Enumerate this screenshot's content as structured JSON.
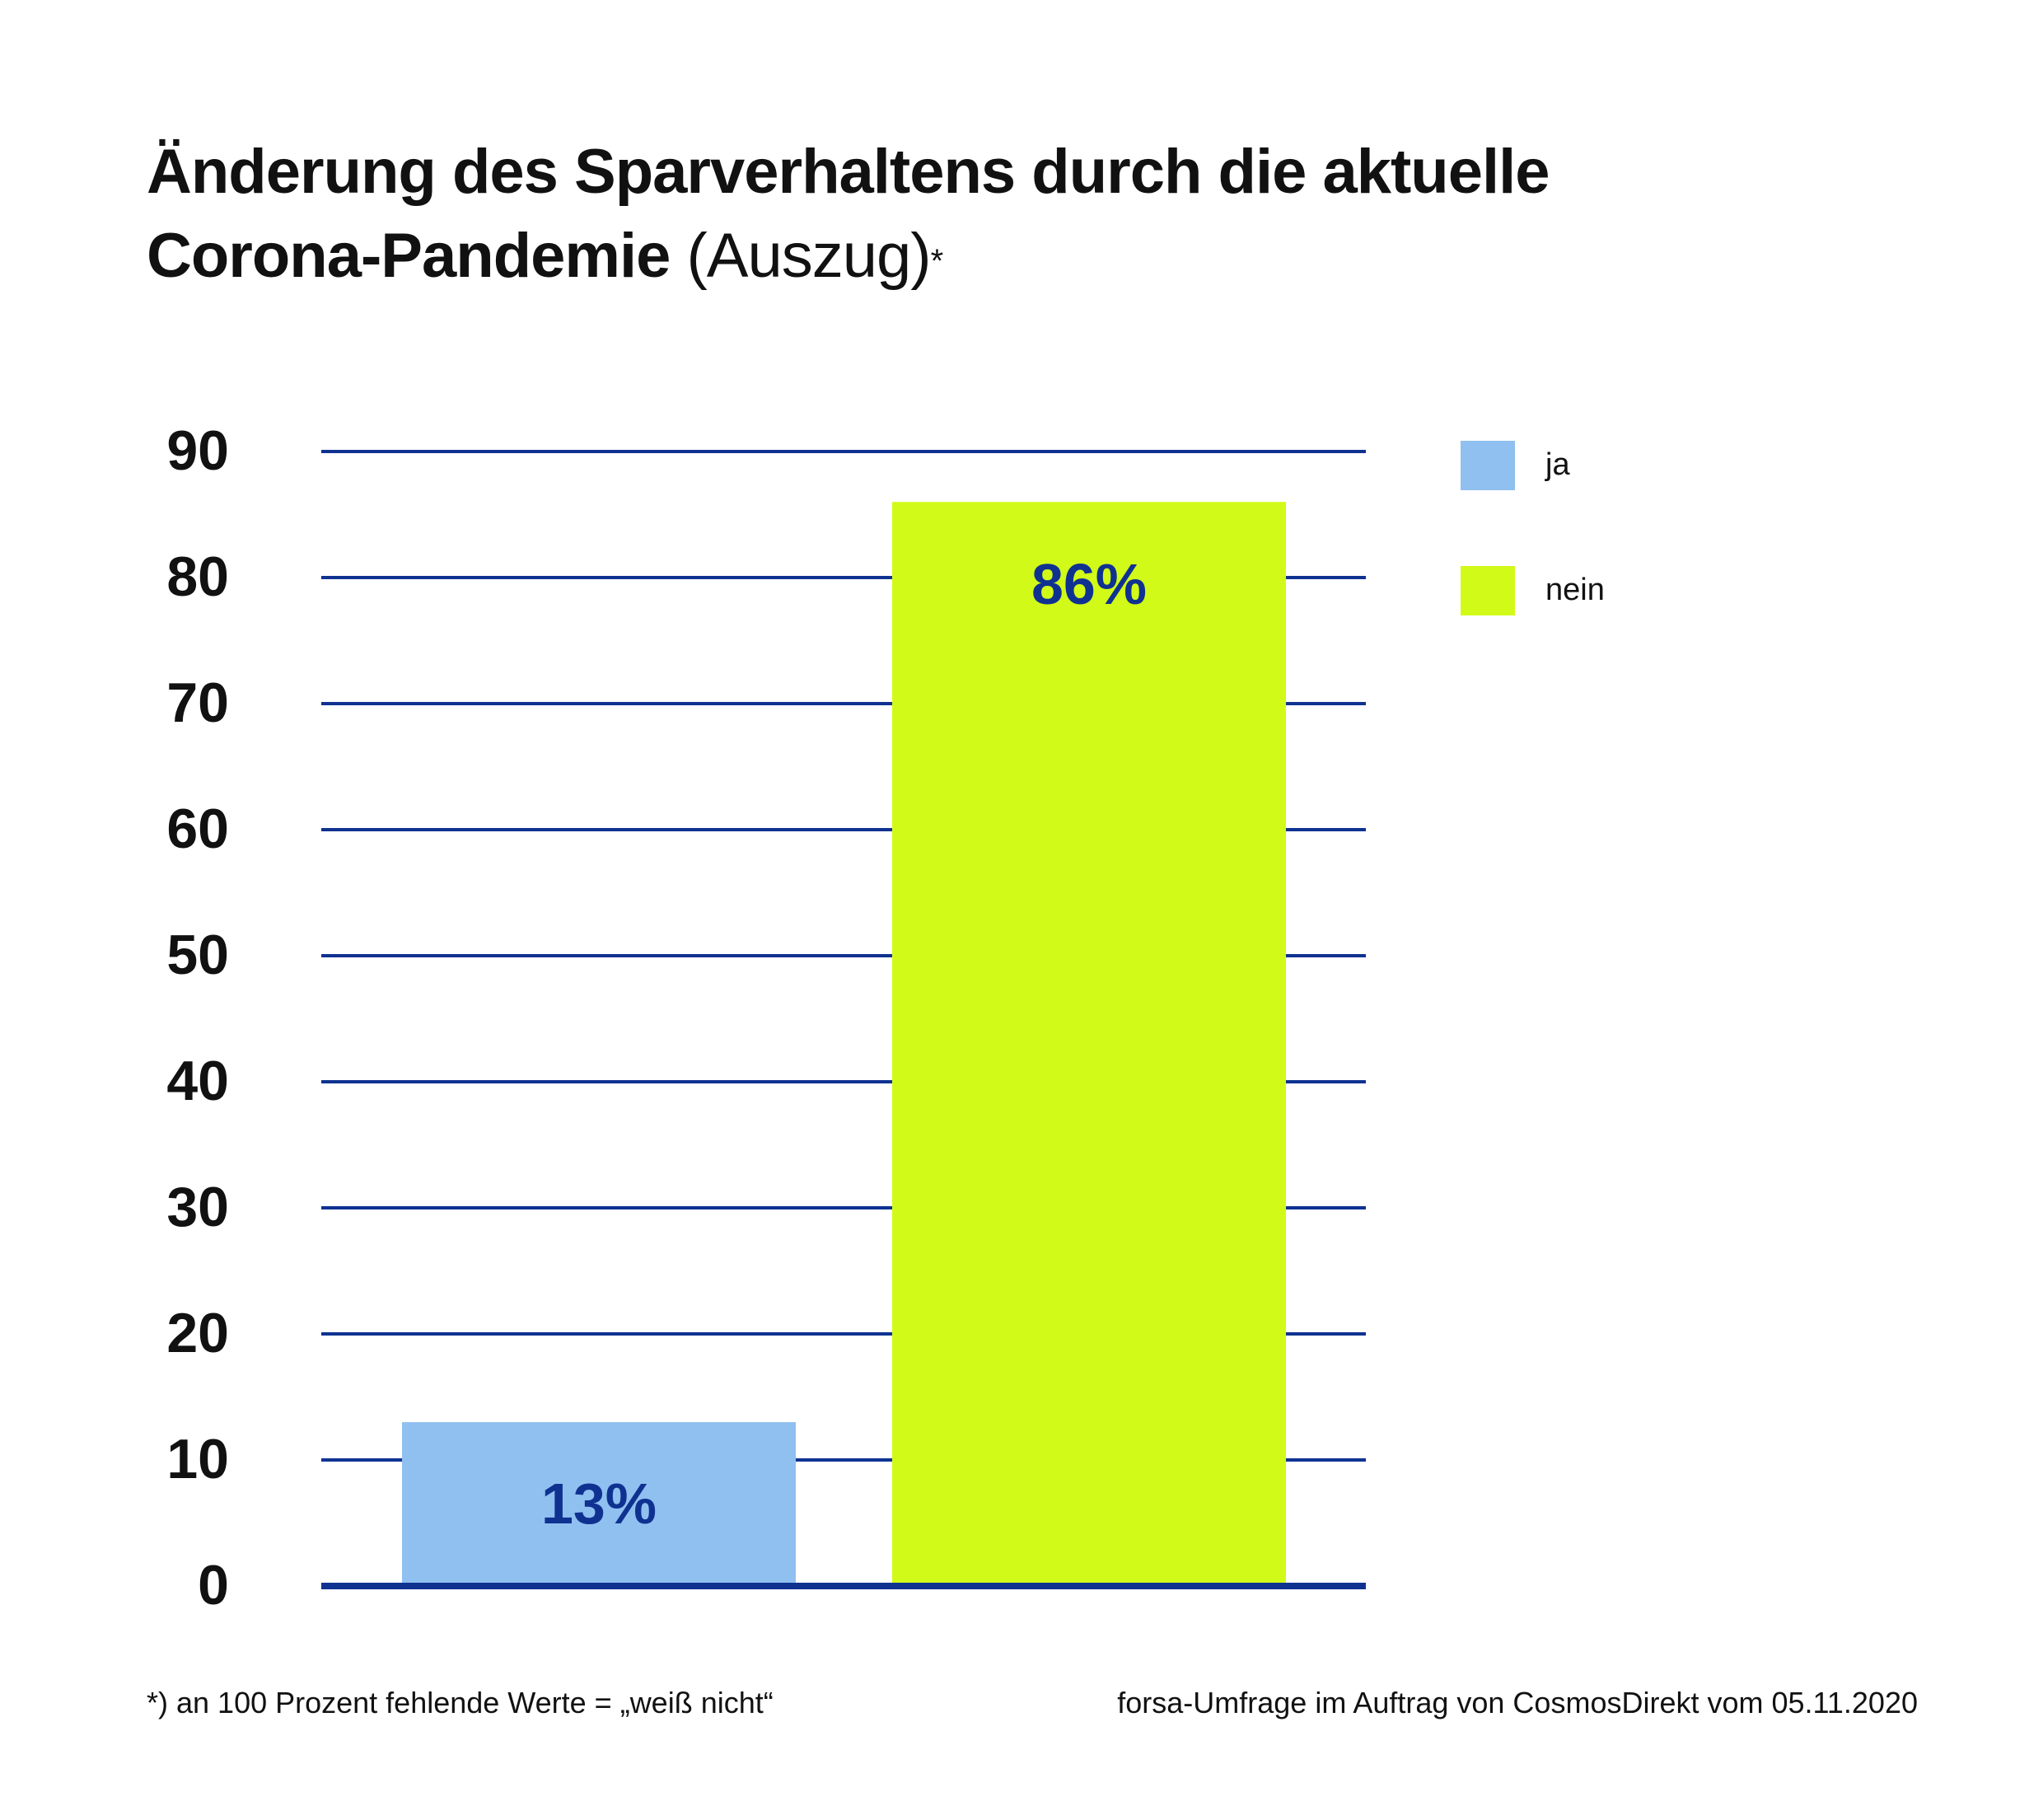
{
  "title": {
    "line1": "Änderung des Sparverhaltens durch die aktuelle",
    "line2_bold": "Corona-Pandemie",
    "line2_light": "(Auszug)",
    "asterisk": "*"
  },
  "legend": [
    {
      "label": "ja",
      "color": "#90c0f0"
    },
    {
      "label": "nein",
      "color": "#d2fa19"
    }
  ],
  "footnote": "*) an 100 Prozent fehlende Werte = „weiß nicht“",
  "source": "forsa-Umfrage im Auftrag von CosmosDirekt vom 05.11.2020",
  "colors": {
    "gridline": "#0f3291",
    "axis": "#0f3291",
    "data_label": "#0f3291",
    "tick_label": "#111111"
  },
  "chart_data": {
    "type": "bar",
    "categories": [
      "ja",
      "nein"
    ],
    "values": [
      13,
      86
    ],
    "data_labels": [
      "13%",
      "86%"
    ],
    "colors": [
      "#90c0f0",
      "#d2fa19"
    ],
    "yticks": [
      0,
      10,
      20,
      30,
      40,
      50,
      60,
      70,
      80,
      90
    ],
    "ylim": [
      0,
      90
    ],
    "grid": true,
    "legend_position": "top-right"
  }
}
